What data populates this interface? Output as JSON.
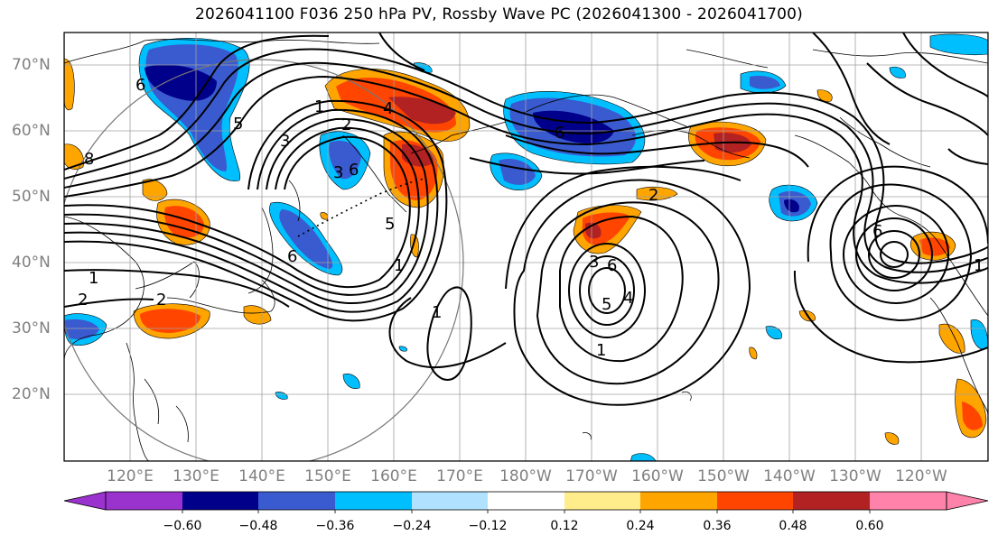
{
  "title": "2026041100 F036 250 hPa PV, Rossby Wave PC (2026041300 - 2026041700)",
  "lat_labels": [
    "70°N",
    "60°N",
    "50°N",
    "40°N",
    "30°N",
    "20°N"
  ],
  "lon_labels": [
    "120°E",
    "130°E",
    "140°E",
    "150°E",
    "160°E",
    "170°E",
    "180°W",
    "170°W",
    "160°W",
    "150°W",
    "140°W",
    "130°W",
    "120°W"
  ],
  "colorbar": {
    "ticks": [
      "−0.60",
      "−0.48",
      "−0.36",
      "−0.24",
      "−0.12",
      "0.12",
      "0.24",
      "0.36",
      "0.48",
      "0.60"
    ],
    "colors": [
      "#9a32cd",
      "#00008b",
      "#3a5bd0",
      "#00bfff",
      "#b0e2ff",
      "#ffffff",
      "#ffec8b",
      "#ffa500",
      "#ff4500",
      "#b22222",
      "#ff82ab"
    ]
  },
  "contour_labels": [
    "1",
    "2",
    "2",
    "3",
    "5",
    "6",
    "8",
    "6",
    "1",
    "3",
    "6",
    "5",
    "4",
    "2",
    "1",
    "2",
    "6",
    "6",
    "3",
    "1",
    "5",
    "4",
    "6",
    "1",
    "1"
  ],
  "legend_colors": {
    "pos_strong": "#b22222",
    "pos_mid": "#ff4500",
    "pos_low": "#ffa500",
    "pos_weak": "#ffec8b",
    "neg_weak": "#b0e2ff",
    "neg_low": "#00bfff",
    "neg_mid": "#3a5bd0",
    "neg_strong": "#00008b"
  }
}
